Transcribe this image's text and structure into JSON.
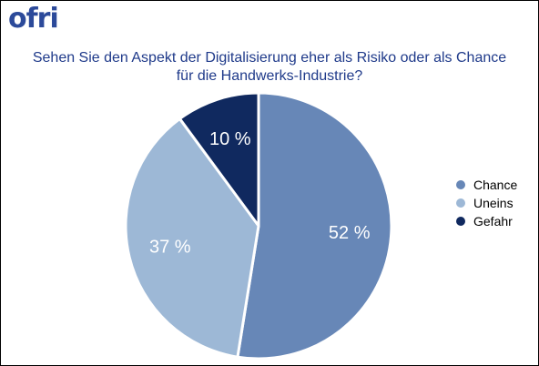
{
  "brand": {
    "logo_text": "ofri"
  },
  "chart_data": {
    "type": "pie",
    "title_lines": [
      "Sehen Sie den Aspekt der Digitalisierung eher als Risiko oder als Chance",
      "für die Handwerks-Industrie?"
    ],
    "slices": [
      {
        "label": "Chance",
        "value": 52,
        "value_label": "52 %",
        "color": "#6787b7"
      },
      {
        "label": "Uneins",
        "value": 37,
        "value_label": "37 %",
        "color": "#9db8d6"
      },
      {
        "label": "Gefahr",
        "value": 10,
        "value_label": "10 %",
        "color": "#10295f"
      }
    ],
    "start_angle_deg": 0,
    "direction": "clockwise",
    "legend_position": "right"
  }
}
